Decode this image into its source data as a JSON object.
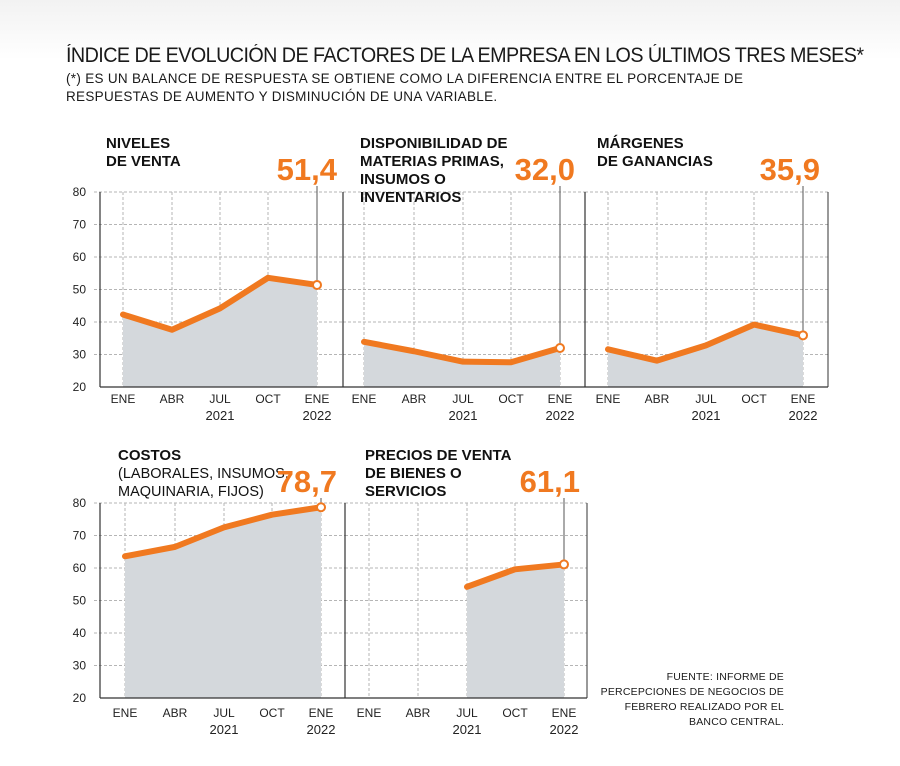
{
  "title": "ÍNDICE DE EVOLUCIÓN DE FACTORES DE LA EMPRESA EN LOS ÚLTIMOS TRES MESES*",
  "subtitle": "(*) ES UN BALANCE DE RESPUESTA SE OBTIENE COMO LA DIFERENCIA ENTRE EL PORCENTAJE DE RESPUESTAS DE AUMENTO Y DISMINUCIÓN DE UNA VARIABLE.",
  "source": "FUENTE: INFORME DE PERCEPCIONES DE NEGOCIOS DE FEBRERO REALIZADO POR EL BANCO CENTRAL.",
  "colors": {
    "line": "#f07920",
    "area": "#d4d8dc",
    "grid": "#b5b5b5",
    "axis": "#333333"
  },
  "chart_data": [
    {
      "type": "area",
      "title_lines": [
        "NIVELES",
        "DE VENTA"
      ],
      "subtitle_lines": [],
      "highlight": "51,4",
      "categories": [
        "ENE",
        "ABR",
        "JUL",
        "OCT",
        "ENE"
      ],
      "years": [
        "2021",
        "2022"
      ],
      "ylim": [
        20,
        80
      ],
      "yticks": [
        "80",
        "70",
        "60",
        "50",
        "40",
        "30",
        "20"
      ],
      "values": [
        42.3,
        37.6,
        44.2,
        53.6,
        51.4
      ]
    },
    {
      "type": "area",
      "title_lines": [
        "DISPONIBILIDAD DE",
        "MATERIAS PRIMAS,",
        "INSUMOS O",
        "INVENTARIOS"
      ],
      "subtitle_lines": [],
      "highlight": "32,0",
      "categories": [
        "ENE",
        "ABR",
        "JUL",
        "OCT",
        "ENE"
      ],
      "years": [
        "2021",
        "2022"
      ],
      "ylim": [
        20,
        80
      ],
      "values": [
        33.9,
        31.0,
        27.8,
        27.6,
        32.0
      ]
    },
    {
      "type": "area",
      "title_lines": [
        "MÁRGENES",
        "DE GANANCIAS"
      ],
      "subtitle_lines": [],
      "highlight": "35,9",
      "categories": [
        "ENE",
        "ABR",
        "JUL",
        "OCT",
        "ENE"
      ],
      "years": [
        "2021",
        "2022"
      ],
      "ylim": [
        20,
        80
      ],
      "values": [
        31.6,
        28.1,
        32.8,
        39.2,
        35.9
      ]
    },
    {
      "type": "area",
      "title_lines": [
        "COSTOS"
      ],
      "subtitle_lines": [
        "(LABORALES, INSUMOS,",
        "MAQUINARIA, FIJOS)"
      ],
      "highlight": "78,7",
      "categories": [
        "ENE",
        "ABR",
        "JUL",
        "OCT",
        "ENE"
      ],
      "years": [
        "2021",
        "2022"
      ],
      "ylim": [
        20,
        80
      ],
      "yticks": [
        "80",
        "70",
        "60",
        "50",
        "40",
        "30",
        "20"
      ],
      "values": [
        63.6,
        66.5,
        72.5,
        76.4,
        78.7
      ]
    },
    {
      "type": "area",
      "title_lines": [
        "PRECIOS DE VENTA",
        "DE BIENES O",
        "SERVICIOS"
      ],
      "subtitle_lines": [],
      "highlight": "61,1",
      "categories": [
        "ENE",
        "ABR",
        "JUL",
        "OCT",
        "ENE"
      ],
      "years": [
        "2021",
        "2022"
      ],
      "ylim": [
        20,
        80
      ],
      "values": [
        null,
        null,
        54.2,
        59.6,
        61.1
      ]
    }
  ]
}
